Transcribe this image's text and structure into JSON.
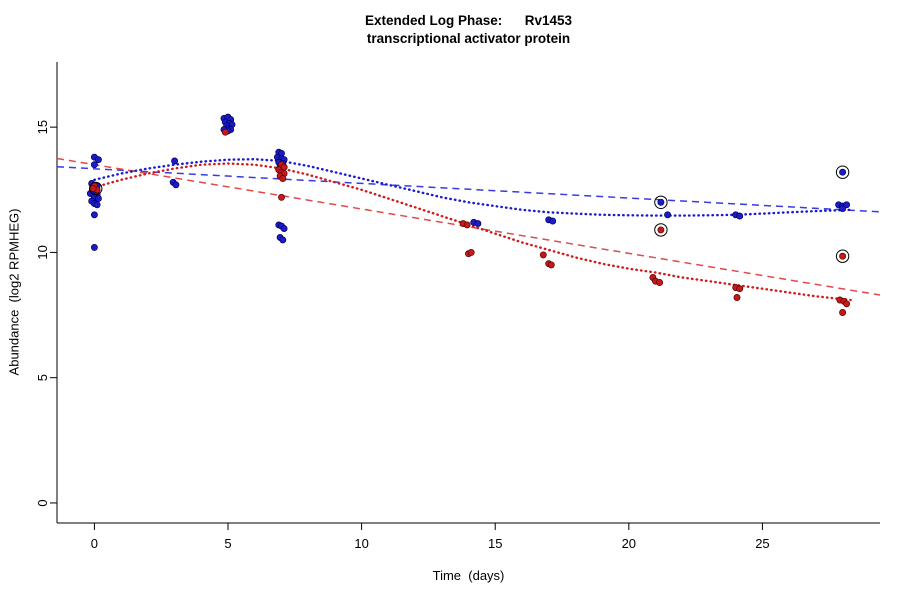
{
  "chart_data": {
    "type": "scatter",
    "title": "Extended Log Phase:      Rv1453",
    "subtitle": "transcriptional activator protein",
    "xlabel": "Time  (days)",
    "ylabel": "Abundance  (log2 RPMHEG)",
    "xlim": [
      -1.4,
      29.4
    ],
    "ylim": [
      -0.8,
      17.6
    ],
    "xticks": [
      0,
      5,
      10,
      15,
      20,
      25
    ],
    "yticks": [
      0,
      5,
      10,
      15
    ],
    "grid": false,
    "legend": "none",
    "colors": {
      "blue": "#1c1cc8",
      "red": "#c41a1a",
      "blue_edge": "#00005a",
      "red_edge": "#5a0000",
      "fit_blue": "#3a3ae0",
      "fit_red": "#e04a4a",
      "loess_blue": "#1a1ad2",
      "loess_red": "#d21a1a",
      "axis": "#000000"
    },
    "series": [
      {
        "name": "blue-replicates",
        "color": "blue",
        "points": [
          [
            0,
            13.8
          ],
          [
            0.15,
            13.7
          ],
          [
            0,
            13.5
          ],
          [
            -0.1,
            12.75
          ],
          [
            0.1,
            12.65
          ],
          [
            0,
            12.45
          ],
          [
            -0.15,
            12.35
          ],
          [
            0.1,
            12.3
          ],
          [
            0,
            12.2
          ],
          [
            0.15,
            12.15
          ],
          [
            -0.1,
            12.05
          ],
          [
            0,
            11.95
          ],
          [
            0.1,
            11.9
          ],
          [
            0,
            11.5
          ],
          [
            0,
            10.2
          ],
          [
            3,
            13.65
          ],
          [
            2.95,
            12.8
          ],
          [
            3.05,
            12.7
          ],
          [
            4.85,
            15.35
          ],
          [
            5.0,
            15.4
          ],
          [
            5.1,
            15.3
          ],
          [
            4.9,
            15.2
          ],
          [
            5.05,
            15.15
          ],
          [
            5.15,
            15.1
          ],
          [
            4.95,
            15.05
          ],
          [
            5.0,
            14.95
          ],
          [
            4.85,
            14.9
          ],
          [
            5.1,
            14.9
          ],
          [
            5.0,
            14.85
          ],
          [
            6.9,
            14.0
          ],
          [
            7.0,
            13.95
          ],
          [
            6.85,
            13.8
          ],
          [
            7.0,
            13.75
          ],
          [
            7.1,
            13.7
          ],
          [
            6.9,
            13.6
          ],
          [
            7.05,
            13.55
          ],
          [
            6.95,
            13.45
          ],
          [
            7.1,
            13.4
          ],
          [
            6.9,
            13.3
          ],
          [
            6.9,
            11.1
          ],
          [
            7.0,
            11.05
          ],
          [
            7.1,
            10.95
          ],
          [
            6.95,
            10.6
          ],
          [
            7.05,
            10.5
          ],
          [
            14.2,
            11.2
          ],
          [
            14.35,
            11.15
          ],
          [
            17.0,
            11.3
          ],
          [
            17.15,
            11.25
          ],
          [
            21.2,
            12.0
          ],
          [
            21.45,
            11.5
          ],
          [
            24.0,
            11.5
          ],
          [
            24.15,
            11.45
          ],
          [
            27.85,
            11.9
          ],
          [
            28.0,
            11.85
          ],
          [
            28.15,
            11.9
          ],
          [
            28.0,
            11.75
          ],
          [
            28.0,
            13.2
          ]
        ]
      },
      {
        "name": "red-replicates",
        "color": "red",
        "points": [
          [
            0,
            12.65
          ],
          [
            0.1,
            12.5
          ],
          [
            -0.05,
            12.55
          ],
          [
            4.9,
            14.8
          ],
          [
            7.0,
            13.5
          ],
          [
            7.1,
            13.4
          ],
          [
            6.9,
            13.3
          ],
          [
            7.0,
            13.2
          ],
          [
            7.1,
            13.15
          ],
          [
            6.95,
            13.05
          ],
          [
            7.05,
            12.95
          ],
          [
            7.0,
            12.2
          ],
          [
            13.8,
            11.15
          ],
          [
            13.95,
            11.1
          ],
          [
            14.0,
            9.95
          ],
          [
            14.1,
            10.0
          ],
          [
            16.8,
            9.9
          ],
          [
            17.0,
            9.55
          ],
          [
            17.1,
            9.5
          ],
          [
            21.2,
            10.9
          ],
          [
            20.9,
            9.0
          ],
          [
            21.0,
            8.85
          ],
          [
            21.15,
            8.8
          ],
          [
            24.0,
            8.6
          ],
          [
            24.15,
            8.55
          ],
          [
            24.05,
            8.2
          ],
          [
            28.0,
            9.85
          ],
          [
            27.9,
            8.1
          ],
          [
            28.05,
            8.05
          ],
          [
            28.15,
            7.95
          ],
          [
            28.0,
            7.6
          ]
        ]
      }
    ],
    "circled_points": [
      [
        0.05,
        12.55
      ],
      [
        21.2,
        12.0
      ],
      [
        21.2,
        10.9
      ],
      [
        28.0,
        13.2
      ],
      [
        28.0,
        9.85
      ]
    ],
    "lines": [
      {
        "name": "blue-linear-fit",
        "color": "fit_blue",
        "style": "dashed",
        "x1": -1.4,
        "y1": 13.42,
        "x2": 29.4,
        "y2": 11.62
      },
      {
        "name": "red-linear-fit",
        "color": "fit_red",
        "style": "dashed",
        "x1": -1.4,
        "y1": 13.75,
        "x2": 29.4,
        "y2": 8.3
      }
    ],
    "curves": [
      {
        "name": "blue-loess-curve",
        "color": "loess_blue",
        "style": "dotted",
        "points": [
          [
            0,
            12.9
          ],
          [
            1,
            13.15
          ],
          [
            2,
            13.35
          ],
          [
            3,
            13.5
          ],
          [
            4,
            13.62
          ],
          [
            5,
            13.7
          ],
          [
            6,
            13.72
          ],
          [
            7,
            13.65
          ],
          [
            8,
            13.45
          ],
          [
            9,
            13.2
          ],
          [
            10,
            12.95
          ],
          [
            11,
            12.7
          ],
          [
            12,
            12.45
          ],
          [
            13,
            12.2
          ],
          [
            14,
            12.0
          ],
          [
            15,
            11.85
          ],
          [
            16,
            11.7
          ],
          [
            17,
            11.6
          ],
          [
            18,
            11.55
          ],
          [
            19,
            11.5
          ],
          [
            20,
            11.48
          ],
          [
            21,
            11.47
          ],
          [
            22,
            11.47
          ],
          [
            23,
            11.48
          ],
          [
            24,
            11.5
          ],
          [
            25,
            11.55
          ],
          [
            26,
            11.6
          ],
          [
            27,
            11.65
          ],
          [
            28.3,
            11.7
          ]
        ]
      },
      {
        "name": "red-loess-curve",
        "color": "loess_red",
        "style": "dotted",
        "points": [
          [
            0,
            12.6
          ],
          [
            1,
            12.9
          ],
          [
            2,
            13.15
          ],
          [
            3,
            13.35
          ],
          [
            4,
            13.5
          ],
          [
            5,
            13.55
          ],
          [
            6,
            13.5
          ],
          [
            7,
            13.35
          ],
          [
            8,
            13.1
          ],
          [
            9,
            12.8
          ],
          [
            10,
            12.5
          ],
          [
            11,
            12.15
          ],
          [
            12,
            11.8
          ],
          [
            13,
            11.45
          ],
          [
            14,
            11.1
          ],
          [
            15,
            10.75
          ],
          [
            16,
            10.4
          ],
          [
            17,
            10.1
          ],
          [
            18,
            9.8
          ],
          [
            19,
            9.55
          ],
          [
            20,
            9.35
          ],
          [
            21,
            9.2
          ],
          [
            22,
            9.0
          ],
          [
            23,
            8.85
          ],
          [
            24,
            8.7
          ],
          [
            25,
            8.55
          ],
          [
            26,
            8.4
          ],
          [
            27,
            8.25
          ],
          [
            28.3,
            8.1
          ]
        ]
      }
    ]
  }
}
